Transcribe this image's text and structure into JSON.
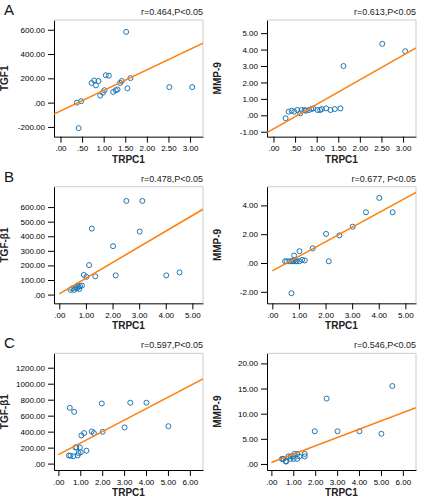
{
  "chart_data": [
    {
      "type": "scatter",
      "title": "A",
      "xlabel": "TRPC1",
      "ylabel": "TGF1",
      "annotation": "r=0.464,P<0.05",
      "grid": false,
      "xlim": [
        -0.15,
        3.3
      ],
      "ylim": [
        -280,
        680
      ],
      "xticks": [
        {
          "value": 0.0,
          "label": ".00"
        },
        {
          "value": 0.5,
          "label": ".50"
        },
        {
          "value": 1.0,
          "label": "1.00"
        },
        {
          "value": 1.5,
          "label": "1.50"
        },
        {
          "value": 2.0,
          "label": "2.00"
        },
        {
          "value": 2.5,
          "label": "2.50"
        },
        {
          "value": 3.0,
          "label": "3.00"
        }
      ],
      "yticks": [
        {
          "value": -200.0,
          "label": "-200.00"
        },
        {
          "value": 0.0,
          "label": ".00"
        },
        {
          "value": 200.0,
          "label": "200.00"
        },
        {
          "value": 400.0,
          "label": "400.00"
        },
        {
          "value": 600.0,
          "label": "600.00"
        }
      ],
      "series": [
        {
          "type": "scatter",
          "x": [
            0.38,
            0.42,
            0.48,
            0.72,
            0.78,
            0.82,
            0.88,
            0.92,
            0.98,
            1.02,
            1.05,
            1.12,
            1.22,
            1.28,
            1.32,
            1.38,
            1.42,
            1.52,
            1.55,
            1.62,
            2.52,
            3.05
          ],
          "values": [
            0,
            -210,
            12,
            162,
            182,
            142,
            178,
            58,
            82,
            102,
            225,
            222,
            88,
            102,
            108,
            162,
            178,
            582,
            118,
            202,
            128,
            128
          ]
        },
        {
          "type": "line",
          "x": [
            -0.15,
            3.3
          ],
          "values": [
            -95,
            490
          ]
        }
      ]
    },
    {
      "type": "scatter",
      "xlabel": "TRPC1",
      "ylabel": "MMP-9",
      "annotation": "r=0.613,P<0.05",
      "grid": false,
      "xlim": [
        -0.15,
        3.3
      ],
      "ylim": [
        -1.3,
        5.8
      ],
      "xticks": [
        {
          "value": 0.0,
          "label": ".00"
        },
        {
          "value": 0.5,
          "label": ".50"
        },
        {
          "value": 1.0,
          "label": "1.00"
        },
        {
          "value": 1.5,
          "label": "1.50"
        },
        {
          "value": 2.0,
          "label": "2.00"
        },
        {
          "value": 2.5,
          "label": "2.50"
        },
        {
          "value": 3.0,
          "label": "3.00"
        }
      ],
      "yticks": [
        {
          "value": -1.0,
          "label": "-1.00"
        },
        {
          "value": 0.0,
          "label": ".00"
        },
        {
          "value": 1.0,
          "label": "1.00"
        },
        {
          "value": 2.0,
          "label": "2.00"
        },
        {
          "value": 3.0,
          "label": "3.00"
        },
        {
          "value": 4.0,
          "label": "4.00"
        },
        {
          "value": 5.0,
          "label": "5.00"
        }
      ],
      "series": [
        {
          "type": "scatter",
          "x": [
            0.28,
            0.35,
            0.42,
            0.48,
            0.55,
            0.62,
            0.65,
            0.72,
            0.75,
            0.82,
            0.88,
            0.92,
            1.02,
            1.08,
            1.12,
            1.22,
            1.32,
            1.42,
            1.55,
            1.62,
            2.52,
            3.05
          ],
          "values": [
            -0.18,
            0.22,
            0.28,
            0.22,
            0.32,
            0.12,
            0.32,
            0.32,
            0.28,
            0.32,
            0.38,
            0.42,
            0.32,
            0.32,
            0.38,
            0.42,
            0.32,
            0.38,
            0.42,
            3.0,
            4.35,
            3.9
          ]
        },
        {
          "type": "line",
          "x": [
            -0.15,
            3.3
          ],
          "values": [
            -1.05,
            4.1
          ]
        }
      ]
    },
    {
      "type": "scatter",
      "title": "B",
      "xlabel": "TRPC1",
      "ylabel": "TGF-β1",
      "annotation": "r=0.478,P<0.05",
      "grid": false,
      "xlim": [
        -0.2,
        5.4
      ],
      "ylim": [
        -60,
        740
      ],
      "xticks": [
        {
          "value": 0.0,
          "label": ".00"
        },
        {
          "value": 1.0,
          "label": "1.00"
        },
        {
          "value": 2.0,
          "label": "2.00"
        },
        {
          "value": 3.0,
          "label": "3.00"
        },
        {
          "value": 4.0,
          "label": "4.00"
        },
        {
          "value": 5.0,
          "label": "5.00"
        }
      ],
      "yticks": [
        {
          "value": 0.0,
          "label": ".00"
        },
        {
          "value": 100.0,
          "label": "100.00"
        },
        {
          "value": 200.0,
          "label": "200.00"
        },
        {
          "value": 300.0,
          "label": "300.00"
        },
        {
          "value": 400.0,
          "label": "400.00"
        },
        {
          "value": 500.0,
          "label": "500.00"
        },
        {
          "value": 600.0,
          "label": "600.00"
        }
      ],
      "series": [
        {
          "type": "scatter",
          "x": [
            0.42,
            0.48,
            0.55,
            0.62,
            0.68,
            0.72,
            0.78,
            0.85,
            0.92,
            1.02,
            1.12,
            1.22,
            1.35,
            2.02,
            2.12,
            2.52,
            3.02,
            3.12,
            4.02,
            4.52,
            0.65,
            0.75
          ],
          "values": [
            32,
            42,
            32,
            52,
            62,
            52,
            58,
            62,
            135,
            122,
            202,
            452,
            125,
            332,
            132,
            642,
            432,
            642,
            132,
            152,
            42,
            38
          ]
        },
        {
          "type": "line",
          "x": [
            0.0,
            5.4
          ],
          "values": [
            5,
            585
          ]
        }
      ]
    },
    {
      "type": "scatter",
      "xlabel": "TRPC1",
      "ylabel": "MMP-9",
      "annotation": "r=0.677, P<0.05",
      "grid": false,
      "xlim": [
        -0.2,
        5.4
      ],
      "ylim": [
        -2.8,
        5.3
      ],
      "xticks": [
        {
          "value": 0.0,
          "label": ".00"
        },
        {
          "value": 1.0,
          "label": "1.00"
        },
        {
          "value": 2.0,
          "label": "2.00"
        },
        {
          "value": 3.0,
          "label": "3.00"
        },
        {
          "value": 4.0,
          "label": "4.00"
        },
        {
          "value": 5.0,
          "label": "5.00"
        }
      ],
      "yticks": [
        {
          "value": -2.0,
          "label": "-2.00"
        },
        {
          "value": 0.0,
          "label": ".00"
        },
        {
          "value": 2.0,
          "label": "2.00"
        },
        {
          "value": 4.0,
          "label": "4.00"
        }
      ],
      "series": [
        {
          "type": "scatter",
          "x": [
            0.48,
            0.55,
            0.65,
            0.72,
            0.78,
            0.82,
            0.88,
            0.92,
            1.02,
            1.12,
            1.52,
            2.02,
            2.12,
            2.52,
            3.02,
            3.52,
            4.02,
            4.52,
            0.72,
            0.82,
            1.02,
            1.22
          ],
          "values": [
            0.12,
            0.12,
            0.12,
            0.12,
            0.12,
            0.18,
            0.12,
            0.12,
            0.82,
            0.22,
            1.02,
            2.02,
            0.12,
            1.92,
            2.52,
            3.52,
            4.52,
            3.52,
            -2.1,
            0.52,
            0.12,
            0.18
          ]
        },
        {
          "type": "line",
          "x": [
            0.0,
            5.4
          ],
          "values": [
            -0.55,
            4.9
          ]
        }
      ]
    },
    {
      "type": "scatter",
      "title": "C",
      "xlabel": "TRPC1",
      "ylabel": "TGF-β1",
      "annotation": "r=0.597,P<0.05",
      "grid": false,
      "xlim": [
        -0.2,
        6.6
      ],
      "ylim": [
        -80,
        1380
      ],
      "xticks": [
        {
          "value": 0.0,
          "label": ".00"
        },
        {
          "value": 1.0,
          "label": "1.00"
        },
        {
          "value": 2.0,
          "label": "2.00"
        },
        {
          "value": 3.0,
          "label": "3.00"
        },
        {
          "value": 4.0,
          "label": "4.00"
        },
        {
          "value": 5.0,
          "label": "5.00"
        },
        {
          "value": 6.0,
          "label": "6.00"
        }
      ],
      "yticks": [
        {
          "value": 0.0,
          "label": ".00"
        },
        {
          "value": 200.0,
          "label": "200.00"
        },
        {
          "value": 400.0,
          "label": "400.00"
        },
        {
          "value": 600.0,
          "label": "600.00"
        },
        {
          "value": 800.0,
          "label": "800.00"
        },
        {
          "value": 1000.0,
          "label": "1000.00"
        },
        {
          "value": 1200.0,
          "label": "1200.00"
        }
      ],
      "series": [
        {
          "type": "scatter",
          "x": [
            0.48,
            0.55,
            0.68,
            0.78,
            0.88,
            0.98,
            1.05,
            1.18,
            1.28,
            1.52,
            1.62,
            1.98,
            2.02,
            3.02,
            3.28,
            4.02,
            5.02,
            0.52,
            0.72,
            0.82,
            0.92,
            1.02
          ],
          "values": [
            102,
            98,
            92,
            202,
            102,
            202,
            352,
            382,
            162,
            402,
            382,
            752,
            398,
            452,
            762,
            762,
            468,
            698,
            648,
            202,
            132,
            142
          ]
        },
        {
          "type": "line",
          "x": [
            0.0,
            6.6
          ],
          "values": [
            112,
            1060
          ]
        }
      ]
    },
    {
      "type": "scatter",
      "xlabel": "TRPC1",
      "ylabel": "MMP-9",
      "annotation": "r=0.546,P<0.05",
      "grid": false,
      "xlim": [
        -0.2,
        6.6
      ],
      "ylim": [
        -1.2,
        22
      ],
      "xticks": [
        {
          "value": 0.0,
          "label": ".00"
        },
        {
          "value": 1.0,
          "label": "1.00"
        },
        {
          "value": 2.0,
          "label": "2.00"
        },
        {
          "value": 3.0,
          "label": "3.00"
        },
        {
          "value": 4.0,
          "label": "4.00"
        },
        {
          "value": 5.0,
          "label": "5.00"
        },
        {
          "value": 6.0,
          "label": "6.00"
        }
      ],
      "yticks": [
        {
          "value": 0.0,
          "label": ".00"
        },
        {
          "value": 5.0,
          "label": "5.00"
        },
        {
          "value": 10.0,
          "label": "10.00"
        },
        {
          "value": 15.0,
          "label": "15.00"
        },
        {
          "value": 20.0,
          "label": "20.00"
        }
      ],
      "series": [
        {
          "type": "scatter",
          "x": [
            0.48,
            0.55,
            0.65,
            0.78,
            0.88,
            0.98,
            1.05,
            1.18,
            1.28,
            1.52,
            1.98,
            2.52,
            3.02,
            4.02,
            5.02,
            5.52,
            0.52,
            0.68,
            0.88,
            1.02,
            1.18,
            1.52
          ],
          "values": [
            1.0,
            1.0,
            0.5,
            1.5,
            1.5,
            1.5,
            2.0,
            2.0,
            1.5,
            2.0,
            6.5,
            13.0,
            6.5,
            6.5,
            6.0,
            15.5,
            1.0,
            0.5,
            1.0,
            1.0,
            1.0,
            1.5
          ]
        },
        {
          "type": "line",
          "x": [
            0.0,
            6.6
          ],
          "values": [
            0.3,
            11.2
          ]
        }
      ]
    }
  ]
}
